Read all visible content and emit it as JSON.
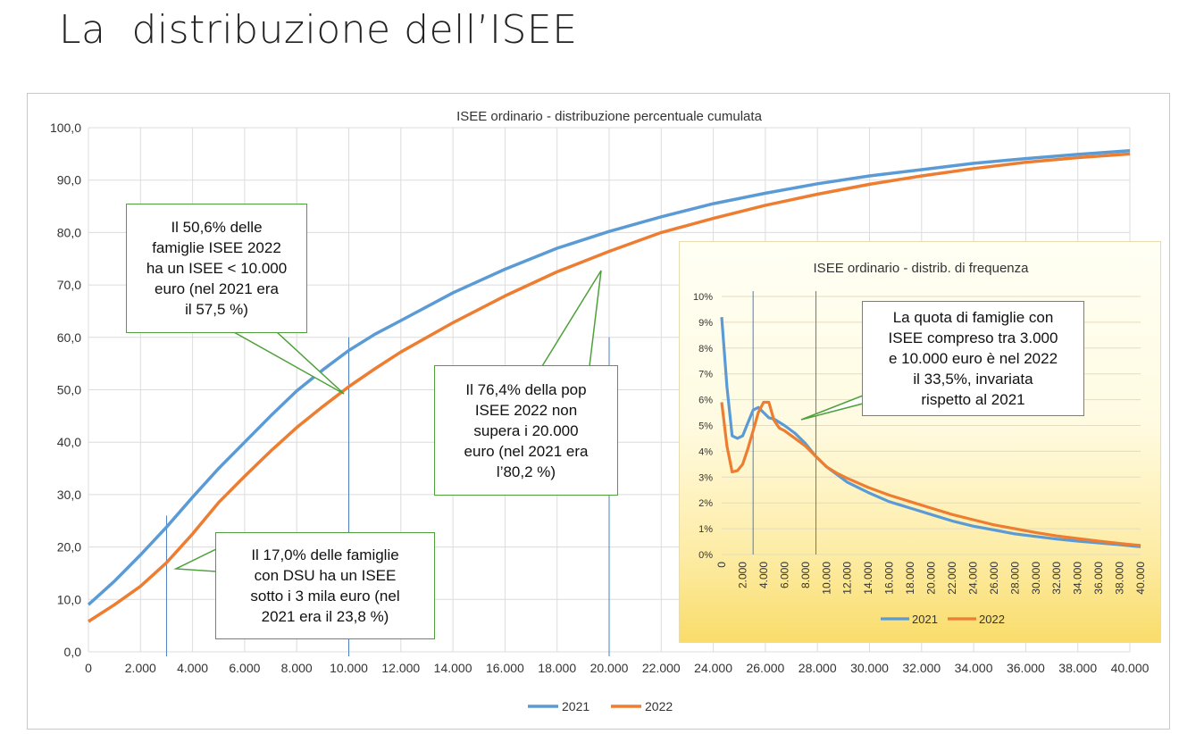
{
  "slide": {
    "title": "La  distribuzione dell’ISEE"
  },
  "colors": {
    "s2021": "#5b9bd5",
    "s2022": "#ed7d31",
    "callout_border": "#4ea03a"
  },
  "chart_data": [
    {
      "type": "line",
      "title": "ISEE ordinario - distribuzione  percentuale cumulata",
      "xlim": [
        0,
        40000
      ],
      "ylim": [
        0,
        100
      ],
      "x_ticks": [
        "0",
        "2.000",
        "4.000",
        "6.000",
        "8.000",
        "10.000",
        "12.000",
        "14.000",
        "16.000",
        "18.000",
        "20.000",
        "22.000",
        "24.000",
        "26.000",
        "28.000",
        "30.000",
        "32.000",
        "34.000",
        "36.000",
        "38.000",
        "40.000"
      ],
      "y_ticks": [
        "0,0",
        "10,0",
        "20,0",
        "30,0",
        "40,0",
        "50,0",
        "60,0",
        "70,0",
        "80,0",
        "90,0",
        "100,0"
      ],
      "grid": true,
      "legend": "bottom-center",
      "reference_lines_x": [
        3000,
        10000,
        20000
      ],
      "series": [
        {
          "name": "2021",
          "x": [
            0,
            1000,
            2000,
            3000,
            4000,
            5000,
            6000,
            7000,
            8000,
            9000,
            10000,
            11000,
            12000,
            14000,
            16000,
            18000,
            20000,
            22000,
            24000,
            26000,
            28000,
            30000,
            32000,
            34000,
            36000,
            38000,
            40000
          ],
          "values": [
            9.0,
            13.5,
            18.5,
            23.8,
            29.5,
            35.0,
            40.0,
            45.0,
            49.8,
            53.8,
            57.5,
            60.6,
            63.2,
            68.5,
            73.0,
            77.0,
            80.2,
            83.0,
            85.5,
            87.5,
            89.3,
            90.8,
            92.0,
            93.2,
            94.1,
            94.9,
            95.6
          ]
        },
        {
          "name": "2022",
          "x": [
            0,
            1000,
            2000,
            3000,
            4000,
            5000,
            6000,
            7000,
            8000,
            9000,
            10000,
            11000,
            12000,
            14000,
            16000,
            18000,
            20000,
            22000,
            24000,
            26000,
            28000,
            30000,
            32000,
            34000,
            36000,
            38000,
            40000
          ],
          "values": [
            5.8,
            9.0,
            12.5,
            17.0,
            22.5,
            28.5,
            33.5,
            38.3,
            42.8,
            46.8,
            50.6,
            54.0,
            57.2,
            62.8,
            67.9,
            72.5,
            76.4,
            80.0,
            82.7,
            85.2,
            87.3,
            89.2,
            90.8,
            92.2,
            93.4,
            94.3,
            95.0
          ]
        }
      ]
    },
    {
      "type": "line",
      "title": "ISEE ordinario - distrib. di frequenza",
      "xlim": [
        0,
        40000
      ],
      "ylim": [
        0,
        10
      ],
      "x_ticks": [
        "0",
        "2.000",
        "4.000",
        "6.000",
        "8.000",
        "10.000",
        "12.000",
        "14.000",
        "16.000",
        "18.000",
        "20.000",
        "22.000",
        "24.000",
        "26.000",
        "28.000",
        "30.000",
        "32.000",
        "34.000",
        "36.000",
        "38.000",
        "40.000"
      ],
      "y_ticks": [
        "0%",
        "1%",
        "2%",
        "3%",
        "4%",
        "5%",
        "6%",
        "7%",
        "8%",
        "9%",
        "10%"
      ],
      "grid": true,
      "legend": "bottom-center",
      "reference_lines_x": [
        3000,
        9000
      ],
      "series": [
        {
          "name": "2021",
          "x": [
            0,
            500,
            1000,
            1500,
            2000,
            2500,
            3000,
            3500,
            4000,
            4500,
            5000,
            6000,
            7000,
            8000,
            9000,
            10000,
            11000,
            12000,
            14000,
            16000,
            18000,
            20000,
            22000,
            24000,
            26000,
            28000,
            30000,
            32000,
            34000,
            36000,
            38000,
            40000
          ],
          "values": [
            9.2,
            6.5,
            4.6,
            4.5,
            4.6,
            5.1,
            5.6,
            5.7,
            5.5,
            5.3,
            5.25,
            5.0,
            4.7,
            4.3,
            3.8,
            3.4,
            3.1,
            2.8,
            2.4,
            2.05,
            1.8,
            1.55,
            1.3,
            1.1,
            0.95,
            0.8,
            0.7,
            0.6,
            0.52,
            0.45,
            0.38,
            0.3
          ]
        },
        {
          "name": "2022",
          "x": [
            0,
            500,
            1000,
            1500,
            2000,
            2500,
            3000,
            3500,
            4000,
            4500,
            5000,
            5500,
            6000,
            7000,
            8000,
            9000,
            10000,
            11000,
            12000,
            14000,
            16000,
            18000,
            20000,
            22000,
            24000,
            26000,
            28000,
            30000,
            32000,
            34000,
            36000,
            38000,
            40000
          ],
          "values": [
            5.9,
            4.2,
            3.2,
            3.25,
            3.5,
            4.1,
            4.8,
            5.5,
            5.9,
            5.9,
            5.2,
            4.9,
            4.8,
            4.5,
            4.2,
            3.8,
            3.4,
            3.15,
            2.95,
            2.6,
            2.3,
            2.05,
            1.8,
            1.55,
            1.35,
            1.15,
            1.0,
            0.85,
            0.72,
            0.62,
            0.52,
            0.43,
            0.35
          ]
        }
      ]
    }
  ],
  "callouts": {
    "c1": "Il 50,6% delle\nfamiglie ISEE 2022\nha un ISEE < 10.000\neuro (nel 2021 era\nil 57,5 %)",
    "c2": "Il 76,4% della pop\nISEE 2022 non\nsupera i 20.000\neuro (nel 2021 era\nl’80,2 %)",
    "c3": "Il 17,0% delle famiglie\ncon DSU ha un ISEE\nsotto i 3 mila euro (nel\n2021 era il 23,8 %)",
    "c4": "La quota di famiglie con\nISEE compreso tra 3.000\ne 10.000 euro è nel 2022\nil 33,5%, invariata\nrispetto al 2021"
  }
}
